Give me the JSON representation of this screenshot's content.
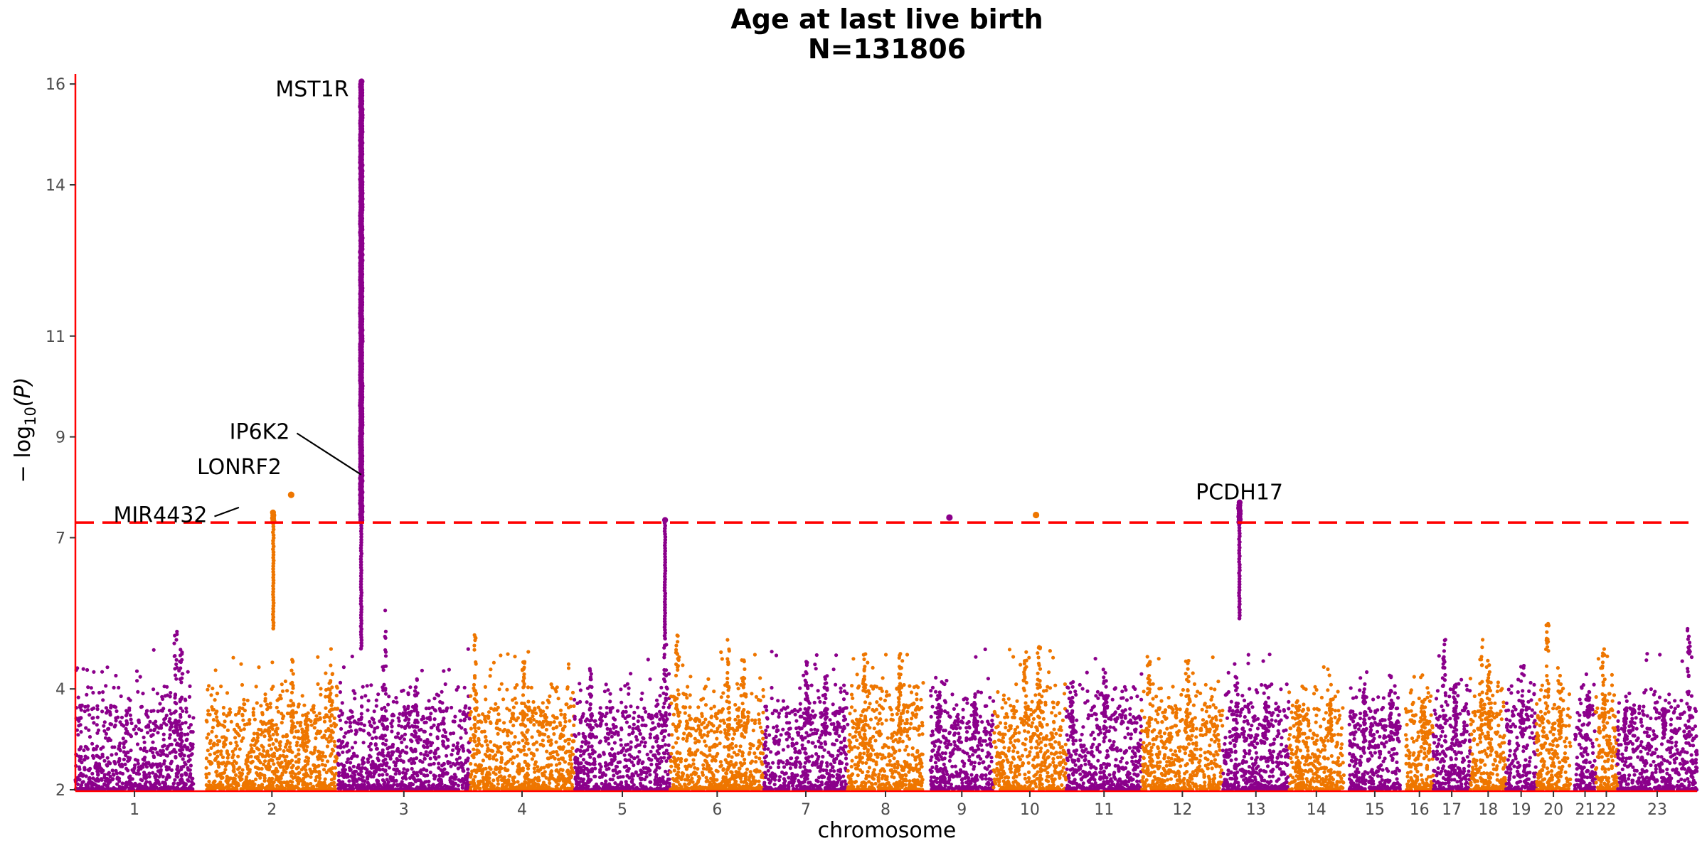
{
  "chart_data": {
    "type": "scatter",
    "title_line1": "Age at last live birth",
    "title_line2": "N=131806",
    "xlabel": "chromosome",
    "ylabel_main": "− log",
    "ylabel_sub": "10",
    "ylabel_paren": "(P)",
    "ylim": [
      2,
      16.2
    ],
    "yticks": [
      2,
      4,
      7,
      9,
      11,
      14,
      16
    ],
    "significance_threshold": 7.3,
    "colors": {
      "odd": "#8B008B",
      "even": "#EE7600",
      "threshold": "#ff0000",
      "axis": "#ff0000"
    },
    "chromosomes": [
      {
        "label": "1",
        "start": 0,
        "end": 8.6,
        "peaks": [
          [
            7.3,
            5.2
          ],
          [
            7.7,
            4.8
          ]
        ]
      },
      {
        "label": "2",
        "start": 9.5,
        "end": 19.1,
        "peaks": [
          [
            15.8,
            4.6
          ],
          [
            16.8,
            3.4
          ],
          [
            18.6,
            4.5
          ]
        ]
      },
      {
        "label": "3",
        "start": 19.1,
        "end": 28.7,
        "peaks": [
          [
            22.5,
            5.6
          ],
          [
            24.8,
            4.2
          ]
        ]
      },
      {
        "label": "4",
        "start": 28.7,
        "end": 36.3,
        "peaks": [
          [
            29.1,
            5.1
          ],
          [
            32.6,
            4.6
          ]
        ]
      },
      {
        "label": "5",
        "start": 36.3,
        "end": 43.3,
        "peaks": [
          [
            37.5,
            4.4
          ],
          [
            42.9,
            4.9
          ]
        ]
      },
      {
        "label": "6",
        "start": 43.3,
        "end": 50.1,
        "peaks": [
          [
            43.8,
            5.2
          ],
          [
            47.5,
            5.0
          ],
          [
            48.6,
            4.6
          ]
        ]
      },
      {
        "label": "7",
        "start": 50.1,
        "end": 56.2,
        "peaks": [
          [
            53.2,
            4.6
          ],
          [
            54.6,
            4.3
          ]
        ]
      },
      {
        "label": "8",
        "start": 56.2,
        "end": 61.7,
        "peaks": [
          [
            57.4,
            4.7
          ],
          [
            60.0,
            4.8
          ]
        ]
      },
      {
        "label": "9",
        "start": 62.2,
        "end": 66.8,
        "peaks": [
          [
            62.8,
            4.0
          ],
          [
            65.5,
            3.9
          ]
        ]
      },
      {
        "label": "10",
        "start": 66.8,
        "end": 72.1,
        "peaks": [
          [
            69.1,
            4.9
          ],
          [
            70.1,
            4.9
          ]
        ]
      },
      {
        "label": "11",
        "start": 72.1,
        "end": 77.6,
        "peaks": [
          [
            72.5,
            4.2
          ],
          [
            74.9,
            4.4
          ]
        ]
      },
      {
        "label": "12",
        "start": 77.6,
        "end": 83.5,
        "peaks": [
          [
            78.1,
            4.7
          ],
          [
            80.9,
            4.6
          ]
        ]
      },
      {
        "label": "13",
        "start": 83.5,
        "end": 88.3,
        "peaks": [
          [
            84.5,
            4.3
          ],
          [
            86.6,
            4.1
          ]
        ]
      },
      {
        "label": "14",
        "start": 88.3,
        "end": 92.3,
        "peaks": [
          [
            89.0,
            3.8
          ],
          [
            91.3,
            3.8
          ]
        ]
      },
      {
        "label": "15",
        "start": 92.7,
        "end": 96.4,
        "peaks": [
          [
            93.8,
            4.0
          ],
          [
            95.7,
            4.3
          ]
        ]
      },
      {
        "label": "16",
        "start": 96.8,
        "end": 98.8,
        "peaks": [
          [
            98.1,
            3.8
          ]
        ]
      },
      {
        "label": "17",
        "start": 98.8,
        "end": 101.5,
        "peaks": [
          [
            99.6,
            5.0
          ],
          [
            100.4,
            4.1
          ]
        ]
      },
      {
        "label": "18",
        "start": 101.5,
        "end": 104.1,
        "peaks": [
          [
            102.3,
            5.0
          ],
          [
            102.8,
            4.6
          ]
        ]
      },
      {
        "label": "19",
        "start": 104.1,
        "end": 106.3,
        "peaks": [
          [
            105.3,
            4.5
          ]
        ]
      },
      {
        "label": "20",
        "start": 106.3,
        "end": 108.8,
        "peaks": [
          [
            107.1,
            5.3
          ],
          [
            108.0,
            4.3
          ]
        ]
      },
      {
        "label": "21",
        "start": 109.1,
        "end": 110.6,
        "peaks": [
          [
            110.1,
            4.0
          ]
        ]
      },
      {
        "label": "22",
        "start": 110.6,
        "end": 112.2,
        "peaks": [
          [
            111.2,
            4.8
          ]
        ]
      },
      {
        "label": "23",
        "start": 112.2,
        "end": 118.0,
        "peaks": [
          [
            112.8,
            3.9
          ],
          [
            115.6,
            3.6
          ],
          [
            117.4,
            5.2
          ]
        ]
      }
    ],
    "hits": [
      {
        "x": 14.4,
        "top": 7.5,
        "base": 5.2,
        "chrom_odd": false
      },
      {
        "x": 20.8,
        "top": 16.05,
        "base": 4.8,
        "chrom_odd": true
      },
      {
        "x": 42.9,
        "top": 7.35,
        "base": 5.0,
        "chrom_odd": true
      },
      {
        "x": 84.7,
        "top": 7.7,
        "base": 5.4,
        "chrom_odd": true
      }
    ],
    "singles": [
      {
        "x": 15.7,
        "y": 7.85,
        "chrom_odd": false
      },
      {
        "x": 63.6,
        "y": 7.4,
        "chrom_odd": true
      },
      {
        "x": 69.9,
        "y": 7.45,
        "chrom_odd": false
      }
    ],
    "annotations": [
      {
        "label": "MST1R",
        "x": 20.8,
        "y": 15.9,
        "lx": 19.9,
        "ly": 15.9,
        "anchor": "end",
        "leader": false
      },
      {
        "label": "IP6K2",
        "x": 20.8,
        "y": 8.25,
        "lx": 15.6,
        "ly": 9.1,
        "anchor": "end",
        "leader": true
      },
      {
        "label": "LONRF2",
        "x": 15.7,
        "y": 7.85,
        "lx": 15.0,
        "ly": 8.4,
        "anchor": "end",
        "leader": false
      },
      {
        "label": "MIR4432",
        "x": 11.9,
        "y": 7.6,
        "lx": 9.6,
        "ly": 7.45,
        "anchor": "end",
        "leader": true
      },
      {
        "label": "PCDH17",
        "x": 84.7,
        "y": 7.7,
        "lx": 84.7,
        "ly": 7.9,
        "anchor": "middle",
        "leader": false
      }
    ]
  }
}
